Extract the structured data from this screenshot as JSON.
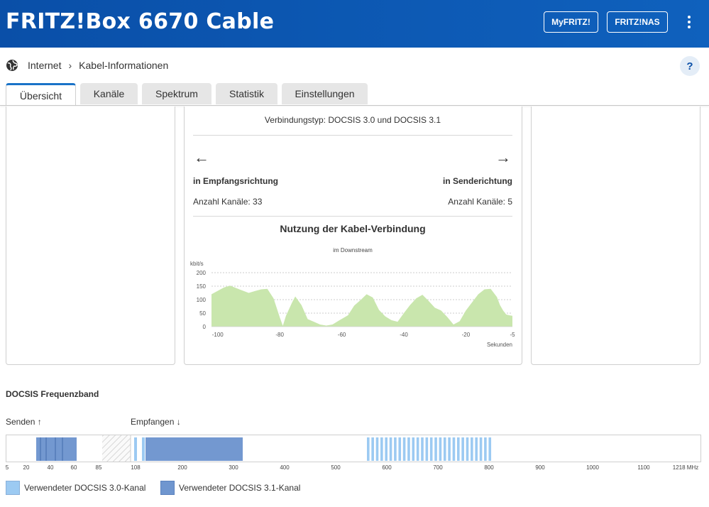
{
  "header": {
    "title": "FRITZ!Box 6670 Cable",
    "buttons": [
      "MyFRITZ!",
      "FRITZ!NAS"
    ]
  },
  "breadcrumb": {
    "section": "Internet",
    "page": "Kabel-Informationen",
    "help": "?"
  },
  "tabs": [
    {
      "label": "Übersicht",
      "active": true
    },
    {
      "label": "Kanäle",
      "active": false
    },
    {
      "label": "Spektrum",
      "active": false
    },
    {
      "label": "Statistik",
      "active": false
    },
    {
      "label": "Einstellungen",
      "active": false
    }
  ],
  "connection": {
    "type_text": "Verbindungstyp: DOCSIS 3.0 und DOCSIS 3.1",
    "downstream": {
      "direction": "in Empfangsrichtung",
      "channels": "Anzahl Kanäle: 33"
    },
    "upstream": {
      "direction": "in Senderichtung",
      "channels": "Anzahl Kanäle: 5"
    }
  },
  "usage_chart": {
    "title": "Nutzung der Kabel-Verbindung",
    "subtitle": "im Downstream",
    "ylabel": "kbit/s",
    "xlabel": "Sekunden",
    "fill_color": "#c9e6ad"
  },
  "chart_data": {
    "type": "area",
    "title": "Nutzung der Kabel-Verbindung",
    "subtitle": "im Downstream",
    "ylabel": "kbit/s",
    "xlabel": "Sekunden",
    "xlim": [
      -102,
      -5
    ],
    "ylim": [
      0,
      200
    ],
    "yticks": [
      0,
      50,
      100,
      150,
      200
    ],
    "xticks": [
      -100,
      -80,
      -60,
      -40,
      -20,
      -5
    ],
    "grid": true,
    "series": [
      {
        "x": [
          -102,
          -98,
          -96,
          -93,
          -90,
          -88,
          -86,
          -84,
          -82,
          -81,
          -80,
          -79,
          -78,
          -76,
          -75,
          -73,
          -71,
          -69,
          -67,
          -65,
          -63,
          -61,
          -58,
          -56,
          -54,
          -52,
          -50,
          -48,
          -46,
          -44,
          -42,
          -40,
          -38,
          -36,
          -34,
          -32,
          -30,
          -28,
          -26,
          -24,
          -22,
          -20,
          -18,
          -16,
          -14,
          -12,
          -10,
          -9,
          -8,
          -7,
          -6,
          -5
        ],
        "y": [
          120,
          145,
          152,
          138,
          125,
          132,
          138,
          140,
          105,
          70,
          35,
          3,
          40,
          90,
          112,
          80,
          28,
          18,
          8,
          4,
          8,
          22,
          42,
          78,
          98,
          120,
          108,
          62,
          38,
          24,
          18,
          50,
          80,
          105,
          118,
          95,
          70,
          60,
          36,
          8,
          20,
          60,
          90,
          120,
          138,
          140,
          110,
          80,
          60,
          45,
          42,
          40
        ]
      }
    ]
  },
  "docsis_band": {
    "title": "DOCSIS Frequenzband",
    "send_label": "Senden",
    "receive_label": "Empfangen",
    "scale_labels": [
      "5",
      "20",
      "40",
      "60",
      "85",
      "108",
      "200",
      "300",
      "400",
      "500",
      "600",
      "700",
      "800",
      "900",
      "1000",
      "1100",
      "1218 MHz"
    ],
    "color_30": "#9ccaf2",
    "color_31": "#7398d0",
    "legend": [
      {
        "label": "Verwendeter DOCSIS 3.0-Kanal",
        "color": "#9ccaf2"
      },
      {
        "label": "Verwendeter DOCSIS 3.1-Kanal",
        "color": "#6f96cf"
      }
    ]
  }
}
